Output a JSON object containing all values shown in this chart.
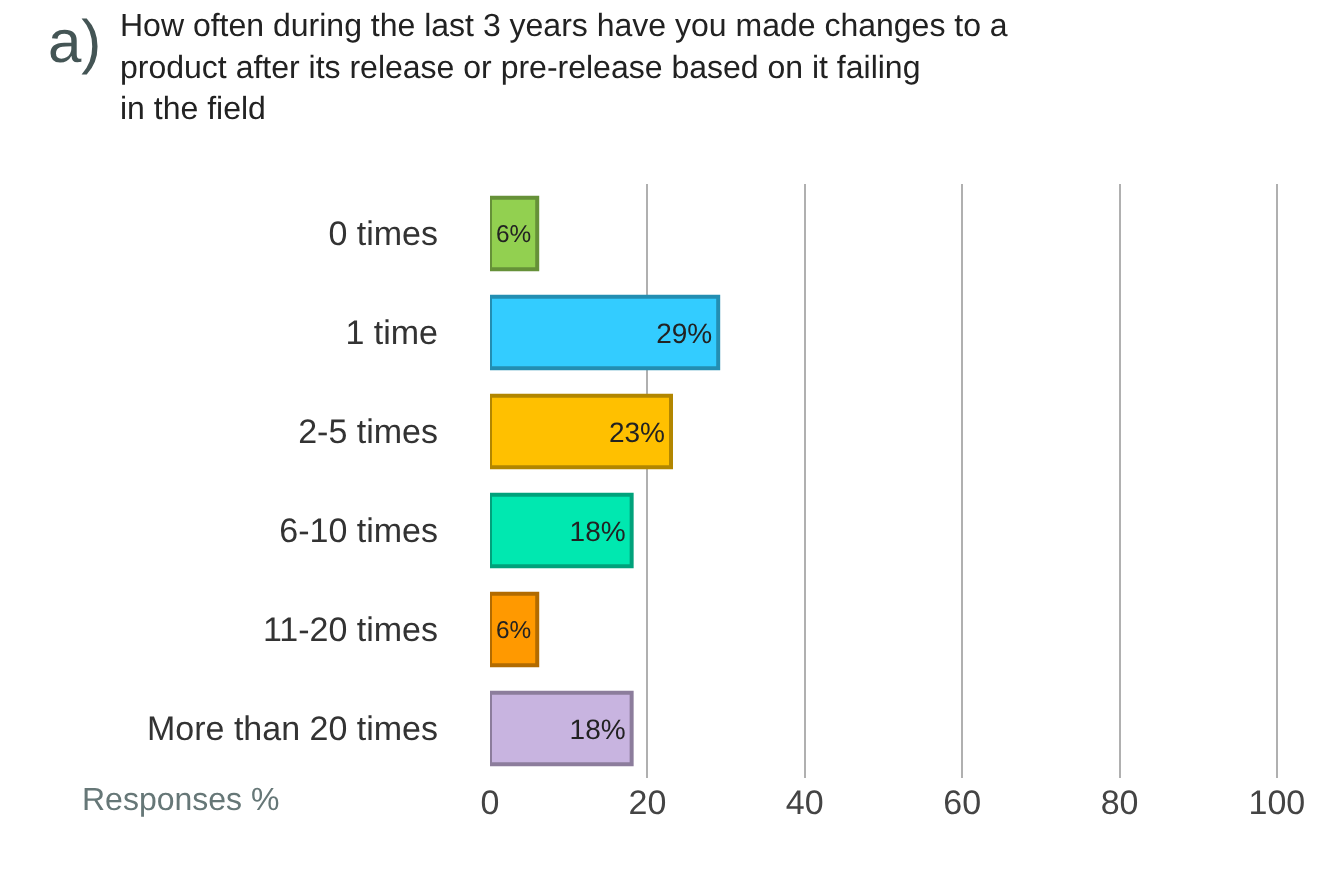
{
  "chart_data": {
    "type": "bar",
    "orientation": "horizontal",
    "title": "How often during the last 3 years have you made changes to a product after its release or pre-release based on it failing in the field",
    "annotations": [
      "a)"
    ],
    "xlabel": "Responses %",
    "categories": [
      "0 times",
      "1 time",
      "2-5 times",
      "6-10 times",
      "11-20 times",
      "More than 20 times"
    ],
    "values": [
      6,
      29,
      23,
      18,
      6,
      18
    ],
    "value_labels": [
      "6%",
      "29%",
      "23%",
      "18%",
      "6%",
      "18%"
    ],
    "colors": [
      "#92d050",
      "#33ccff",
      "#ffc000",
      "#00e8b0",
      "#ff9900",
      "#c8b4e0"
    ],
    "xlim": [
      0,
      107
    ],
    "xticks": [
      0,
      20,
      40,
      60,
      80,
      100
    ],
    "grid": "x",
    "legend": false
  }
}
